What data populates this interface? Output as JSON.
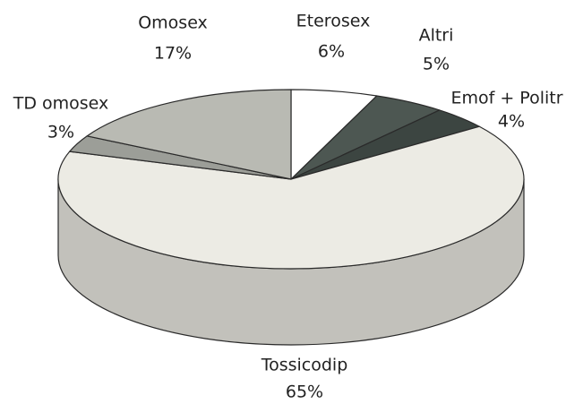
{
  "chart_data": {
    "type": "pie",
    "categories": [
      "Eterosex",
      "Altri",
      "Emof + Politr",
      "Tossicodip",
      "TD omosex",
      "Omosex"
    ],
    "values": [
      6,
      5,
      4,
      65,
      3,
      17
    ],
    "value_labels": [
      "6%",
      "5%",
      "4%",
      "65%",
      "3%",
      "17%"
    ],
    "colors": [
      "#ffffff",
      "#4d5752",
      "#3c4541",
      "#ecebe4",
      "#9c9e98",
      "#b9bab3"
    ]
  }
}
